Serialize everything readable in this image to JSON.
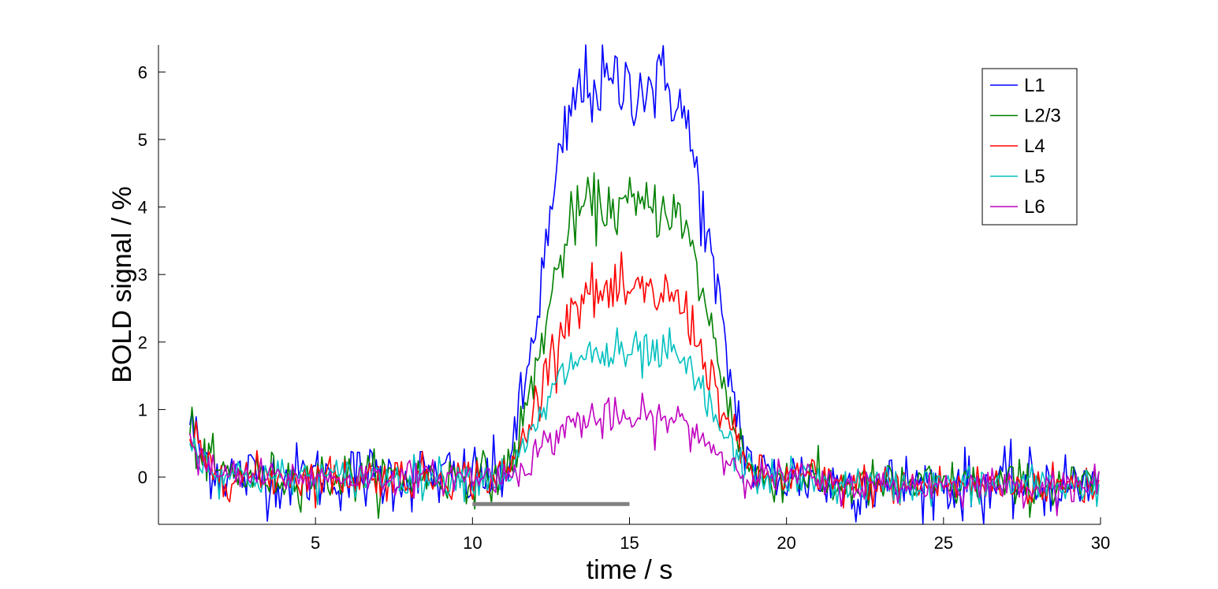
{
  "chart_data": {
    "type": "line",
    "title": "",
    "xlabel": "time / s",
    "ylabel": "BOLD signal / %",
    "xlim": [
      0,
      30
    ],
    "ylim": [
      -0.7,
      6.4
    ],
    "xticks": [
      5,
      10,
      15,
      20,
      25,
      30
    ],
    "yticks": [
      0,
      1,
      2,
      3,
      4,
      5,
      6
    ],
    "grid": false,
    "legend_position": "top-right",
    "stimulus_bar": {
      "x_start": 10,
      "x_end": 15,
      "y": -0.4,
      "color": "#808080"
    },
    "series": [
      {
        "name": "L1",
        "color": "#0000ff",
        "peak": 5.8,
        "noise": 0.25
      },
      {
        "name": "L2/3",
        "color": "#008000",
        "peak": 4.0,
        "noise": 0.18
      },
      {
        "name": "L4",
        "color": "#ff0000",
        "peak": 2.7,
        "noise": 0.16
      },
      {
        "name": "L5",
        "color": "#00bfbf",
        "peak": 1.8,
        "noise": 0.14
      },
      {
        "name": "L6",
        "color": "#bf00bf",
        "peak": 0.85,
        "noise": 0.12
      }
    ]
  }
}
